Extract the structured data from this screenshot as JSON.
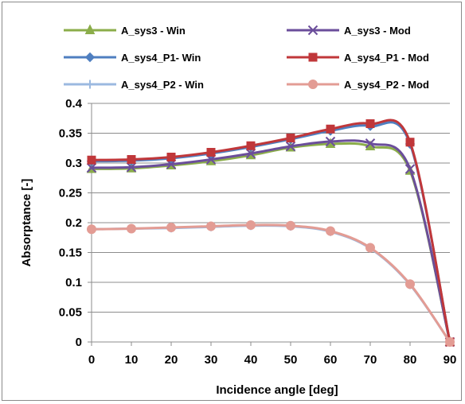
{
  "chart_data": {
    "type": "line",
    "title": "",
    "xlabel": "Incidence angle [deg]",
    "ylabel": "Absorptance [-]",
    "xlim": [
      0,
      90
    ],
    "ylim": [
      0,
      0.4
    ],
    "x_ticks": [
      "0",
      "10",
      "20",
      "30",
      "40",
      "50",
      "60",
      "70",
      "80",
      "90"
    ],
    "y_ticks": [
      "0",
      "0.05",
      "0.1",
      "0.15",
      "0.2",
      "0.25",
      "0.3",
      "0.35",
      "0.4"
    ],
    "grid": "horizontal",
    "legend_position": "top",
    "x": [
      0,
      10,
      20,
      30,
      40,
      50,
      60,
      70,
      80,
      90
    ],
    "series": [
      {
        "name": "A_sys3 - Win",
        "color": "#8bad4a",
        "marker": "triangle",
        "values": [
          0.29,
          0.291,
          0.296,
          0.303,
          0.313,
          0.326,
          0.332,
          0.328,
          0.287,
          0.0
        ]
      },
      {
        "name": "A_sys3 - Mod",
        "color": "#6b4e9b",
        "marker": "x",
        "values": [
          0.292,
          0.293,
          0.298,
          0.306,
          0.316,
          0.328,
          0.336,
          0.333,
          0.29,
          0.0
        ]
      },
      {
        "name": "A_sys4_P1- Win",
        "color": "#4f7fc0",
        "marker": "diamond",
        "values": [
          0.303,
          0.304,
          0.308,
          0.316,
          0.327,
          0.34,
          0.354,
          0.362,
          0.332,
          0.0
        ]
      },
      {
        "name": "A_sys4_P1 - Mod",
        "color": "#c0373a",
        "marker": "square",
        "values": [
          0.305,
          0.306,
          0.31,
          0.318,
          0.329,
          0.342,
          0.357,
          0.366,
          0.335,
          0.0
        ]
      },
      {
        "name": "A_sys4_P2 - Win",
        "color": "#9bb9e0",
        "marker": "plus",
        "values": [
          0.189,
          0.19,
          0.191,
          0.193,
          0.195,
          0.194,
          0.185,
          0.157,
          0.096,
          0.0
        ]
      },
      {
        "name": "A_sys4_P2 - Mod",
        "color": "#e39c94",
        "marker": "circle",
        "values": [
          0.189,
          0.19,
          0.192,
          0.194,
          0.196,
          0.195,
          0.186,
          0.158,
          0.097,
          0.0
        ]
      }
    ]
  }
}
